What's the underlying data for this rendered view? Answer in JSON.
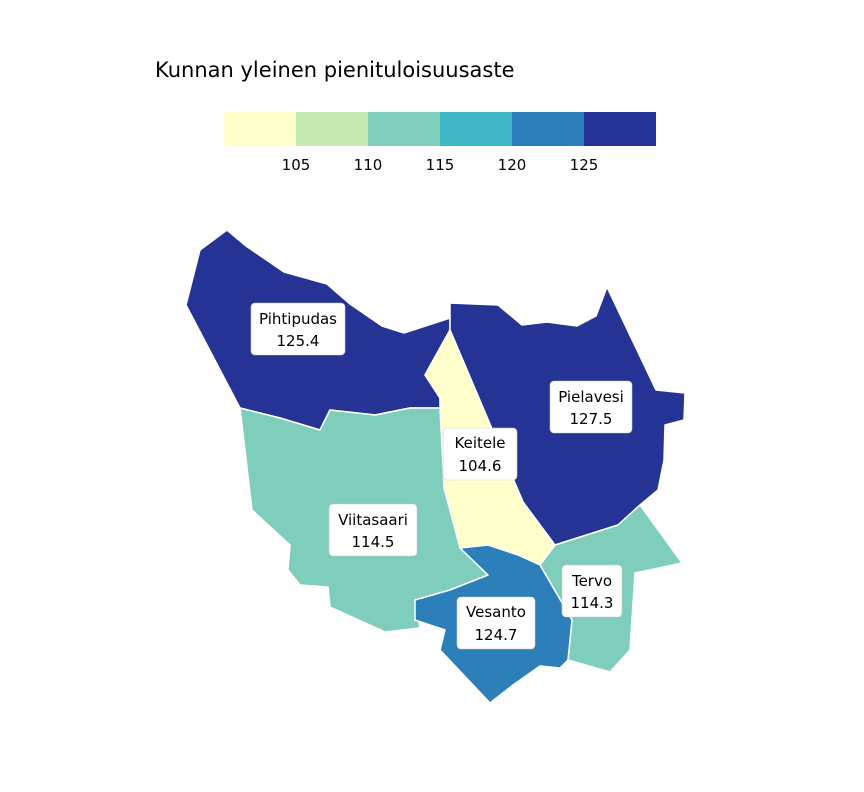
{
  "title": "Kunnan yleinen pienituloisuusaste",
  "legend": {
    "bins": [
      "#ffffcc",
      "#c7e9b4",
      "#7fcdbb",
      "#41b6c4",
      "#2c7fb8",
      "#253494"
    ],
    "ticks": [
      "105",
      "110",
      "115",
      "120",
      "125"
    ]
  },
  "municipalities": [
    {
      "id": "pihtipudas",
      "name": "Pihtipudas",
      "value": "125.4",
      "color": "#253494"
    },
    {
      "id": "pielavesi",
      "name": "Pielavesi",
      "value": "127.5",
      "color": "#253494"
    },
    {
      "id": "keitele",
      "name": "Keitele",
      "value": "104.6",
      "color": "#ffffcc"
    },
    {
      "id": "viitasaari",
      "name": "Viitasaari",
      "value": "114.5",
      "color": "#7fcdbb"
    },
    {
      "id": "tervo",
      "name": "Tervo",
      "value": "114.3",
      "color": "#7fcdbb"
    },
    {
      "id": "vesanto",
      "name": "Vesanto",
      "value": "124.7",
      "color": "#2c7fb8"
    }
  ]
}
